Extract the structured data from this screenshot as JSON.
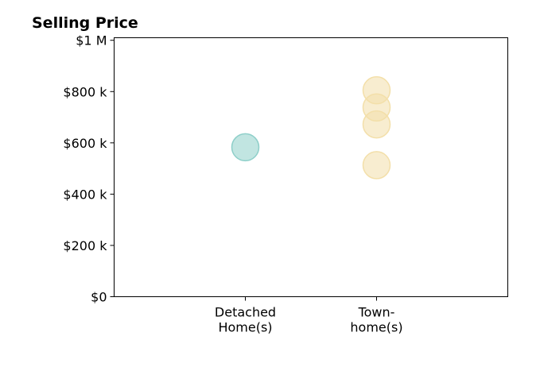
{
  "chart_data": {
    "type": "scatter",
    "title": "Selling Price",
    "xlabel": "",
    "ylabel": "",
    "categories": [
      [
        "Detached",
        "Home(s)"
      ],
      [
        "Town-",
        "home(s)"
      ]
    ],
    "series": [
      {
        "category_index": 0,
        "values": [
          583000
        ],
        "color": "#8ecfc9"
      },
      {
        "category_index": 1,
        "values": [
          805000,
          738000,
          672000,
          513000
        ],
        "color": "#f3dfa9"
      }
    ],
    "yticks": [
      {
        "value": 0,
        "label": "$0"
      },
      {
        "value": 200000,
        "label": "$200 k"
      },
      {
        "value": 400000,
        "label": "$400 k"
      },
      {
        "value": 600000,
        "label": "$600 k"
      },
      {
        "value": 800000,
        "label": "$800 k"
      },
      {
        "value": 1000000,
        "label": "$1 M"
      }
    ],
    "ylim": [
      0,
      1010000
    ],
    "xlim": [
      -1,
      2
    ],
    "grid": false,
    "legend": "none"
  }
}
